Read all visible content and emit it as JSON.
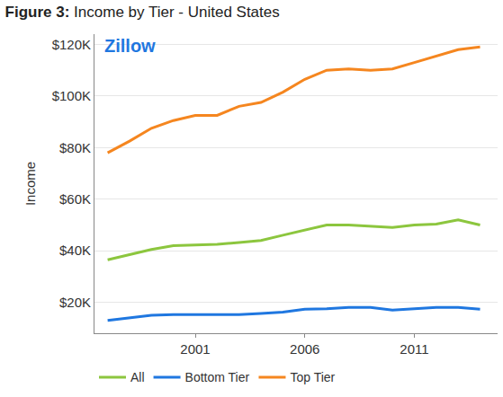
{
  "chart_data": {
    "type": "line",
    "title": "Figure 3: Income by Tier - United States",
    "y_label": "Income",
    "annotations": [
      {
        "text": "Zillow"
      }
    ],
    "x": [
      1997,
      1998,
      1999,
      2000,
      2001,
      2002,
      2003,
      2004,
      2005,
      2006,
      2007,
      2008,
      2009,
      2010,
      2011,
      2012,
      2013,
      2014
    ],
    "series": [
      {
        "name": "All",
        "color": "#8cc63e",
        "values": [
          36500,
          38500,
          40500,
          42000,
          42200,
          42500,
          43200,
          44000,
          46000,
          48000,
          50000,
          50000,
          49500,
          49000,
          50000,
          50300,
          52000,
          50000
        ]
      },
      {
        "name": "Bottom Tier",
        "color": "#1f77e0",
        "values": [
          13000,
          14000,
          15000,
          15200,
          15200,
          15000,
          15200,
          15700,
          16200,
          17300,
          17500,
          18000,
          18000,
          17000,
          17500,
          18000,
          18000,
          17300
        ]
      },
      {
        "name": "Top Tier",
        "color": "#f5861f",
        "values": [
          78000,
          82500,
          87500,
          90500,
          92500,
          92500,
          96000,
          97500,
          101500,
          106500,
          110000,
          110500,
          110000,
          110500,
          113000,
          115500,
          118000,
          119000
        ]
      }
    ],
    "xlim": [
      1996.4,
      2014.8
    ],
    "xticks": [
      2001,
      2006,
      2011
    ],
    "ylim": [
      8000,
      124000
    ],
    "yticks": [
      {
        "value": 20000,
        "label": "$20K"
      },
      {
        "value": 40000,
        "label": "$40K"
      },
      {
        "value": 60000,
        "label": "$60K"
      },
      {
        "value": 80000,
        "label": "$80K"
      },
      {
        "value": 100000,
        "label": "$100K"
      },
      {
        "value": 120000,
        "label": "$120K"
      }
    ],
    "grid": true,
    "legend": "bottom"
  }
}
